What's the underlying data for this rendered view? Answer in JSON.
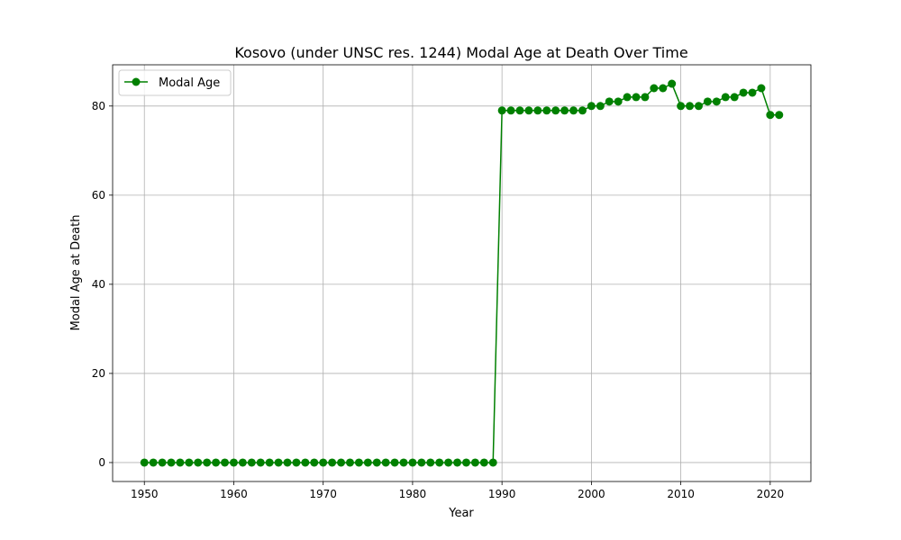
{
  "chart_data": {
    "type": "line",
    "title": "Kosovo (under UNSC res. 1244) Modal Age at Death Over Time",
    "xlabel": "Year",
    "ylabel": "Modal Age at Death",
    "xlim": [
      1946.45,
      2024.55
    ],
    "ylim": [
      -4.25,
      89.25
    ],
    "x_ticks": [
      1950,
      1960,
      1970,
      1980,
      1990,
      2000,
      2010,
      2020
    ],
    "y_ticks": [
      0,
      20,
      40,
      60,
      80
    ],
    "grid": true,
    "legend_position": "top-left",
    "series": [
      {
        "name": "Modal Age",
        "color": "#008000",
        "marker": "circle",
        "x": [
          1950,
          1951,
          1952,
          1953,
          1954,
          1955,
          1956,
          1957,
          1958,
          1959,
          1960,
          1961,
          1962,
          1963,
          1964,
          1965,
          1966,
          1967,
          1968,
          1969,
          1970,
          1971,
          1972,
          1973,
          1974,
          1975,
          1976,
          1977,
          1978,
          1979,
          1980,
          1981,
          1982,
          1983,
          1984,
          1985,
          1986,
          1987,
          1988,
          1989,
          1990,
          1991,
          1992,
          1993,
          1994,
          1995,
          1996,
          1997,
          1998,
          1999,
          2000,
          2001,
          2002,
          2003,
          2004,
          2005,
          2006,
          2007,
          2008,
          2009,
          2010,
          2011,
          2012,
          2013,
          2014,
          2015,
          2016,
          2017,
          2018,
          2019,
          2020,
          2021
        ],
        "values": [
          0,
          0,
          0,
          0,
          0,
          0,
          0,
          0,
          0,
          0,
          0,
          0,
          0,
          0,
          0,
          0,
          0,
          0,
          0,
          0,
          0,
          0,
          0,
          0,
          0,
          0,
          0,
          0,
          0,
          0,
          0,
          0,
          0,
          0,
          0,
          0,
          0,
          0,
          0,
          0,
          79,
          79,
          79,
          79,
          79,
          79,
          79,
          79,
          79,
          79,
          80,
          80,
          81,
          81,
          82,
          82,
          82,
          84,
          84,
          85,
          80,
          80,
          80,
          81,
          81,
          82,
          82,
          83,
          83,
          84,
          78,
          78
        ]
      }
    ]
  }
}
